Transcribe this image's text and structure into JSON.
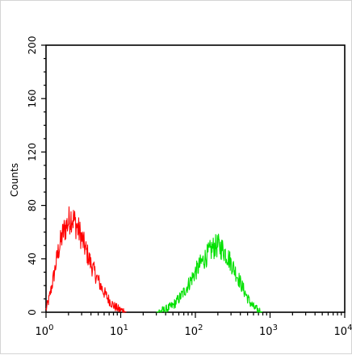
{
  "chart_data": {
    "type": "histogram",
    "ylabel": "Counts",
    "xscale": "log",
    "xlim": [
      1,
      10000
    ],
    "ylim": [
      0,
      200
    ],
    "y_major_ticks": [
      0,
      40,
      80,
      120,
      160,
      200
    ],
    "y_tick_labels": [
      "0",
      "40",
      "80",
      "120",
      "160",
      "200"
    ],
    "x_tick_labels": [
      {
        "base": "10",
        "exp": "0"
      },
      {
        "base": "10",
        "exp": "1"
      },
      {
        "base": "10",
        "exp": "2"
      },
      {
        "base": "10",
        "exp": "3"
      },
      {
        "base": "10",
        "exp": "4"
      }
    ],
    "grid": false,
    "legend": "none",
    "series": [
      {
        "color": "#ff0000",
        "points": [
          [
            1.0,
            2
          ],
          [
            1.1,
            10
          ],
          [
            1.25,
            25
          ],
          [
            1.45,
            45
          ],
          [
            1.7,
            60
          ],
          [
            2.0,
            68
          ],
          [
            2.2,
            72
          ],
          [
            2.5,
            66
          ],
          [
            2.9,
            58
          ],
          [
            3.4,
            47
          ],
          [
            4.0,
            36
          ],
          [
            4.8,
            26
          ],
          [
            5.7,
            17
          ],
          [
            6.8,
            10
          ],
          [
            8.0,
            5
          ],
          [
            9.5,
            2
          ],
          [
            11,
            1
          ],
          [
            12,
            0
          ]
        ]
      },
      {
        "color": "#00e000",
        "points": [
          [
            30,
            0
          ],
          [
            40,
            2
          ],
          [
            50,
            5
          ],
          [
            60,
            10
          ],
          [
            72,
            16
          ],
          [
            85,
            23
          ],
          [
            100,
            30
          ],
          [
            120,
            37
          ],
          [
            145,
            43
          ],
          [
            170,
            48
          ],
          [
            200,
            50
          ],
          [
            235,
            47
          ],
          [
            270,
            42
          ],
          [
            320,
            34
          ],
          [
            380,
            25
          ],
          [
            450,
            16
          ],
          [
            530,
            8
          ],
          [
            620,
            3
          ],
          [
            720,
            1
          ],
          [
            800,
            0
          ]
        ]
      }
    ]
  }
}
